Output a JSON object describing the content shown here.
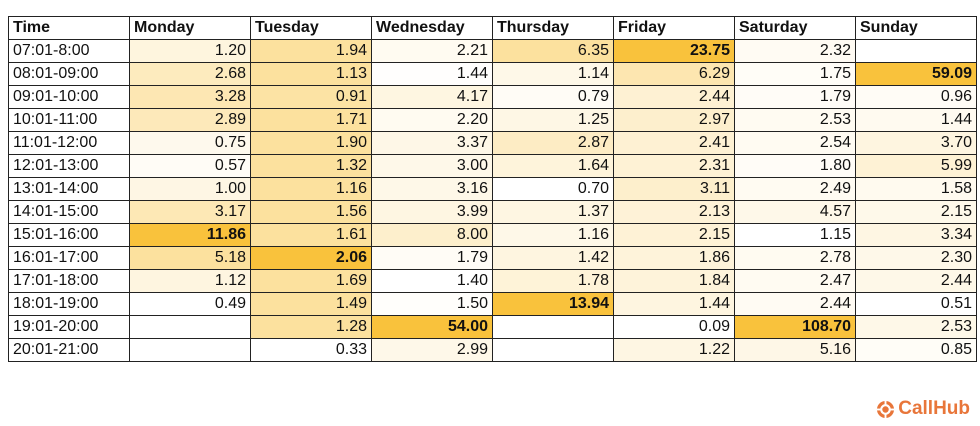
{
  "table": {
    "columns": [
      "Time",
      "Monday",
      "Tuesday",
      "Wednesday",
      "Thursday",
      "Friday",
      "Saturday",
      "Sunday"
    ],
    "rows": [
      {
        "time": "07:01-8:00",
        "values": [
          "1.20",
          "1.94",
          "2.21",
          "6.35",
          "23.75",
          "2.32",
          ""
        ]
      },
      {
        "time": "08:01-09:00",
        "values": [
          "2.68",
          "1.13",
          "1.44",
          "1.14",
          "6.29",
          "1.75",
          "59.09"
        ]
      },
      {
        "time": "09:01-10:00",
        "values": [
          "3.28",
          "0.91",
          "4.17",
          "0.79",
          "2.44",
          "1.79",
          "0.96"
        ]
      },
      {
        "time": "10:01-11:00",
        "values": [
          "2.89",
          "1.71",
          "2.20",
          "1.25",
          "2.97",
          "2.53",
          "1.44"
        ]
      },
      {
        "time": "11:01-12:00",
        "values": [
          "0.75",
          "1.90",
          "3.37",
          "2.87",
          "2.41",
          "2.54",
          "3.70"
        ]
      },
      {
        "time": "12:01-13:00",
        "values": [
          "0.57",
          "1.32",
          "3.00",
          "1.64",
          "2.31",
          "1.80",
          "5.99"
        ]
      },
      {
        "time": "13:01-14:00",
        "values": [
          "1.00",
          "1.16",
          "3.16",
          "0.70",
          "3.11",
          "2.49",
          "1.58"
        ]
      },
      {
        "time": "14:01-15:00",
        "values": [
          "3.17",
          "1.56",
          "3.99",
          "1.37",
          "2.13",
          "4.57",
          "2.15"
        ]
      },
      {
        "time": "15:01-16:00",
        "values": [
          "11.86",
          "1.61",
          "8.00",
          "1.16",
          "2.15",
          "1.15",
          "3.34"
        ]
      },
      {
        "time": "16:01-17:00",
        "values": [
          "5.18",
          "2.06",
          "1.79",
          "1.42",
          "1.86",
          "2.78",
          "2.30"
        ]
      },
      {
        "time": "17:01-18:00",
        "values": [
          "1.12",
          "1.69",
          "1.40",
          "1.78",
          "1.84",
          "2.47",
          "2.44"
        ]
      },
      {
        "time": "18:01-19:00",
        "values": [
          "0.49",
          "1.49",
          "1.50",
          "13.94",
          "1.44",
          "2.44",
          "0.51"
        ]
      },
      {
        "time": "19:01-20:00",
        "values": [
          "",
          "1.28",
          "54.00",
          "",
          "0.09",
          "108.70",
          "2.53"
        ]
      },
      {
        "time": "20:01-21:00",
        "values": [
          "",
          "0.33",
          "2.99",
          "",
          "1.22",
          "5.16",
          "0.85"
        ]
      }
    ]
  },
  "colors": {
    "low": "#ffffff",
    "high": "#f9c23c"
  },
  "brand": {
    "name": "CallHub",
    "icon": "callhub-logo-icon"
  }
}
